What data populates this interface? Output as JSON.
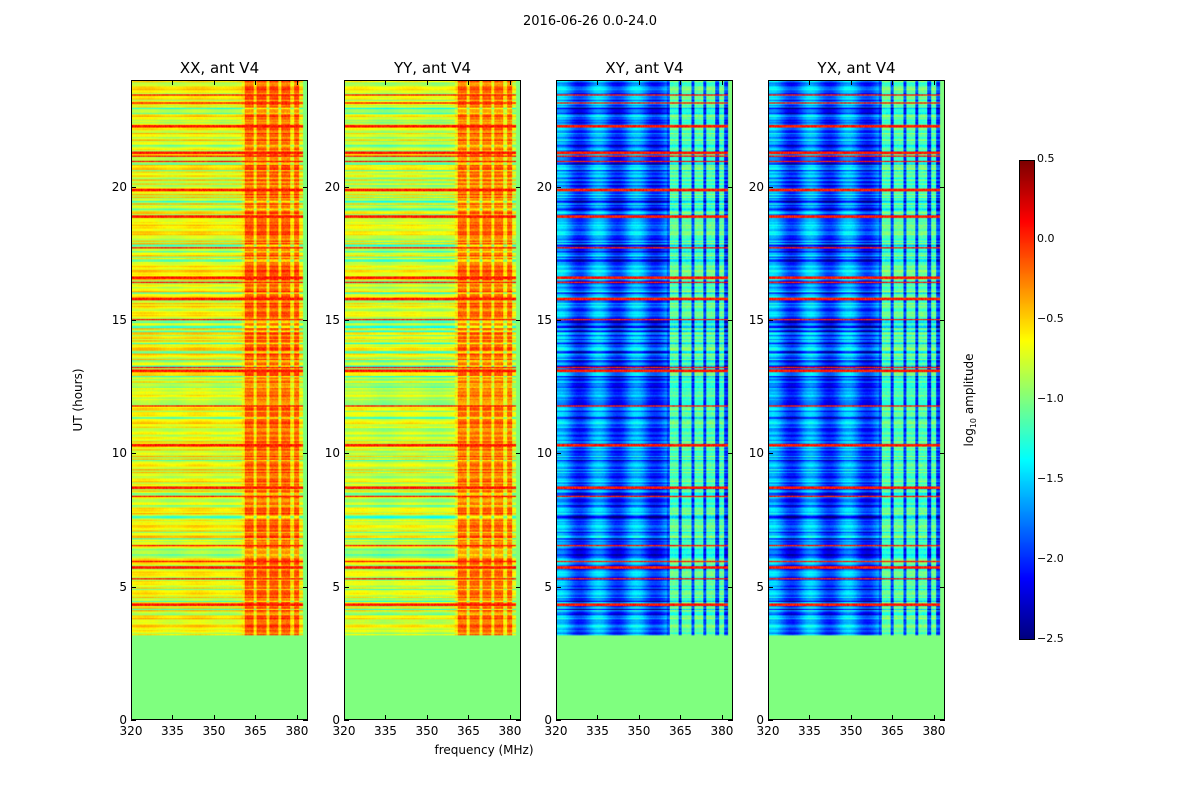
{
  "chart_data": {
    "type": "heatmap",
    "title": "2016-06-26 0.0-24.0",
    "xlabel": "frequency (MHz)",
    "ylabel": "UT (hours)",
    "xlim": [
      320,
      384
    ],
    "ylim": [
      0,
      24
    ],
    "xticks": [
      320,
      335,
      350,
      365,
      380
    ],
    "yticks": [
      0,
      5,
      10,
      15,
      20
    ],
    "colormap": "jet",
    "colorbar": {
      "label_prefix": "log",
      "label_sub": "10",
      "label_suffix": " amplitude",
      "vmin": -2.5,
      "vmax": 0.5,
      "ticks": [
        "0.5",
        "0.0",
        "−0.5",
        "−1.0",
        "−1.5",
        "−2.0",
        "−2.5"
      ],
      "tick_values": [
        0.5,
        0.0,
        -0.5,
        -1.0,
        -1.5,
        -2.0,
        -2.5
      ]
    },
    "no_data_value": -1.0,
    "data_start_hour": 3.15,
    "rfi_band_mhz": [
      360,
      381
    ],
    "panels": [
      {
        "title": "XX, ant V4",
        "base_level": -0.65,
        "band_level": -0.15,
        "stripe_level": -0.55
      },
      {
        "title": "YY, ant V4",
        "base_level": -0.75,
        "band_level": -0.2,
        "stripe_level": -0.6
      },
      {
        "title": "XY, ant V4",
        "base_level": -1.75,
        "band_level": -1.1,
        "stripe_level": -1.9
      },
      {
        "title": "YX, ant V4",
        "base_level": -1.75,
        "band_level": -1.1,
        "stripe_level": -1.9
      }
    ],
    "strong_rows_hours": [
      4.3,
      5.7,
      8.7,
      10.3,
      13.1,
      15.8,
      16.6,
      18.9,
      19.9,
      21.3,
      22.3
    ]
  }
}
